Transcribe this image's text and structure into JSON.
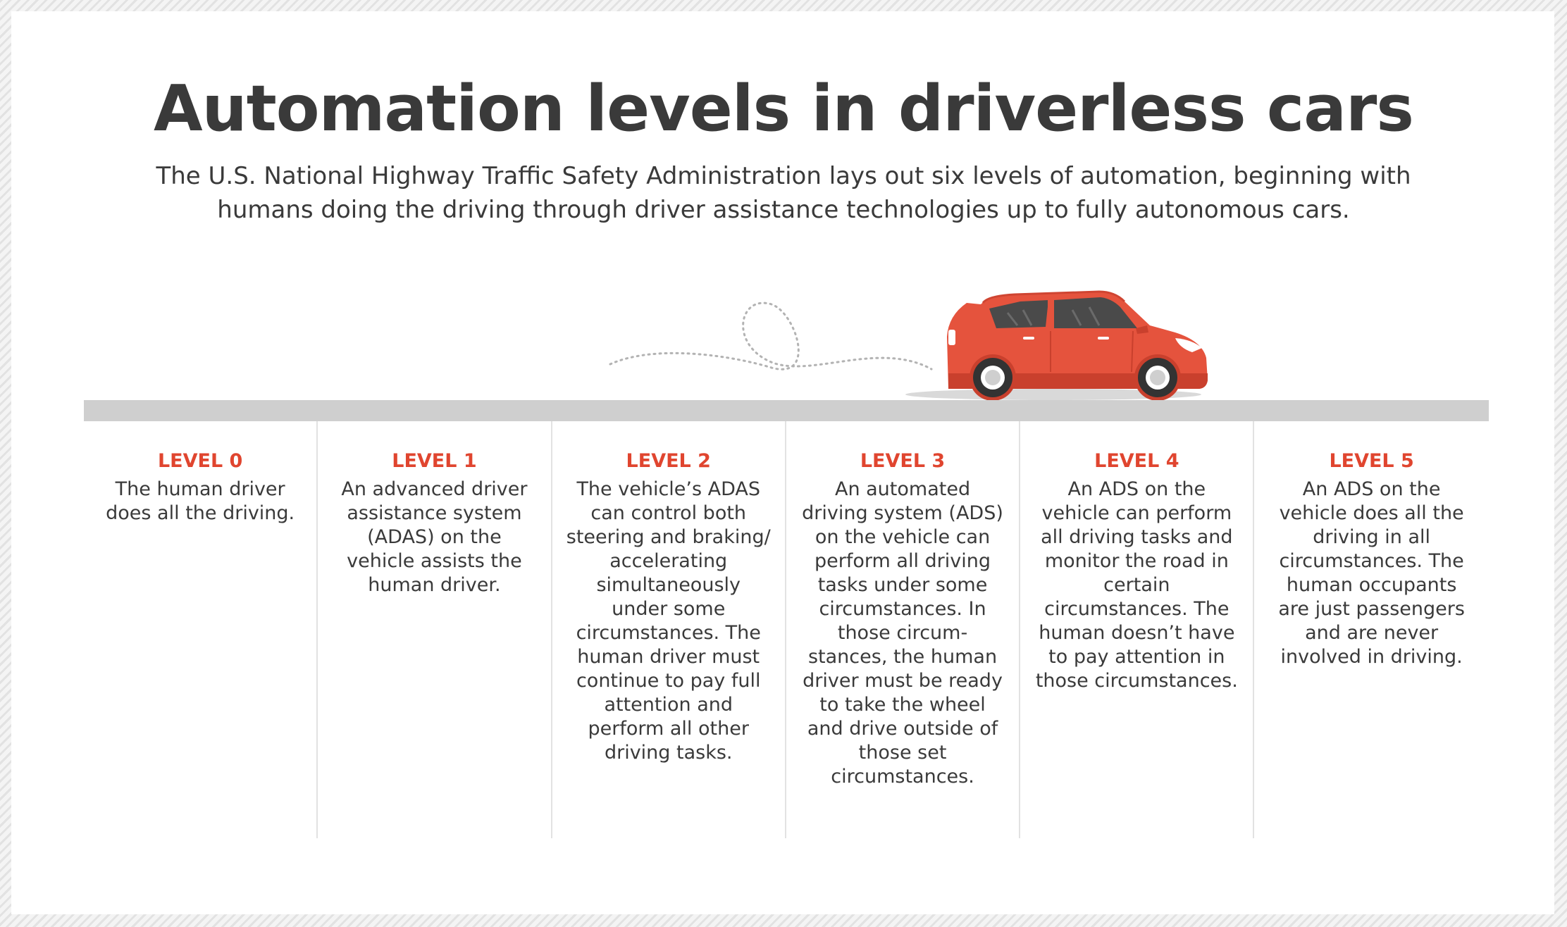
{
  "title": "Automation levels in driverless cars",
  "subtitle": "The U.S. National Highway Traffic Safety Administration lays out six levels of automation, beginning with humans doing the driving through driver assistance technologies up to fully autonomous cars.",
  "colors": {
    "accent": "#e0452f",
    "car_body": "#e5533d",
    "text": "#3a3a3a",
    "road": "#cfcfcf"
  },
  "illustration": {
    "vehicle_icon": "car-icon",
    "path_icon": "dotted-path-icon"
  },
  "levels": [
    {
      "label": "LEVEL 0",
      "description": "The human driver does all the driving."
    },
    {
      "label": "LEVEL 1",
      "description": "An advanced driver assistance system (ADAS) on the vehicle assists the human driver."
    },
    {
      "label": "LEVEL 2",
      "description": "The vehicle’s ADAS can control both steering and braking/ accelerating simultaneously under some circumstances. The human driver must continue to pay full attention and perform all other driving tasks."
    },
    {
      "label": "LEVEL 3",
      "description": "An automated driving system (ADS) on the vehicle can perform all driving tasks under some circumstances. In those circum-stances, the human driver must be ready to take the wheel and drive outside of those set circumstances."
    },
    {
      "label": "LEVEL 4",
      "description": "An ADS on the vehicle can perform all driving tasks and monitor the road in certain circumstances. The human doesn’t have to pay attention in those circumstances."
    },
    {
      "label": "LEVEL 5",
      "description": "An ADS on the vehicle does all the driving in all circumstances. The human occupants are just passengers and are never involved in driving."
    }
  ]
}
